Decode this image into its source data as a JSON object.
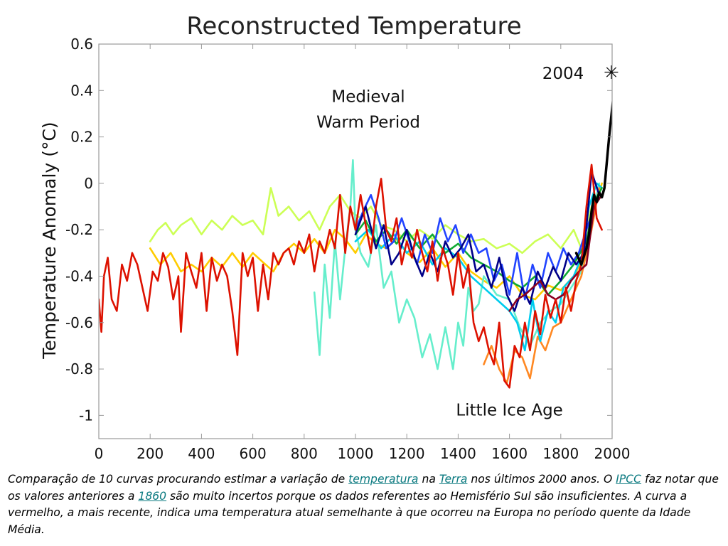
{
  "chart_data": {
    "type": "line",
    "title": "Reconstructed Temperature",
    "xlabel": "",
    "ylabel": "Temperature Anomaly (°C)",
    "xlim": [
      0,
      2000
    ],
    "ylim": [
      -1.1,
      0.6
    ],
    "xticks": [
      0,
      200,
      400,
      600,
      800,
      1000,
      1200,
      1400,
      1600,
      1800,
      2000
    ],
    "yticks": [
      {
        "value": 0.6,
        "label": "0.6"
      },
      {
        "value": 0.4,
        "label": "0.4"
      },
      {
        "value": 0.2,
        "label": "0.2"
      },
      {
        "value": 0,
        "label": "0"
      },
      {
        "value": -0.2,
        "label": "-0.2"
      },
      {
        "value": -0.4,
        "label": "-0.4"
      },
      {
        "value": -0.6,
        "label": "-0.6"
      },
      {
        "value": -0.8,
        "label": "-0.8"
      },
      {
        "value": -1,
        "label": "-1"
      }
    ],
    "grid": false,
    "annotations": [
      {
        "text": "Medieval",
        "x": 1050,
        "y": 0.35
      },
      {
        "text": "Warm Period",
        "x": 1050,
        "y": 0.24
      },
      {
        "text": "Little Ice Age",
        "x": 1600,
        "y": -1.0
      },
      {
        "text": "2004",
        "x": 1890,
        "y": 0.45
      },
      {
        "text": "✳",
        "x": 1997,
        "y": 0.45
      }
    ],
    "series": [
      {
        "color": "#ccff55",
        "x": [
          200,
          230,
          260,
          290,
          320,
          360,
          400,
          440,
          480,
          520,
          560,
          600,
          640,
          670,
          700,
          740,
          780,
          820,
          860,
          900,
          940,
          980,
          1020,
          1060,
          1100,
          1150,
          1200,
          1250,
          1300,
          1350,
          1400,
          1450,
          1500,
          1550,
          1600,
          1650,
          1700,
          1750,
          1800,
          1850,
          1880,
          1900,
          1920,
          1950
        ],
        "y": [
          -0.25,
          -0.2,
          -0.17,
          -0.22,
          -0.18,
          -0.15,
          -0.22,
          -0.16,
          -0.2,
          -0.14,
          -0.18,
          -0.16,
          -0.22,
          -0.02,
          -0.14,
          -0.1,
          -0.16,
          -0.12,
          -0.2,
          -0.1,
          -0.05,
          -0.12,
          -0.15,
          -0.1,
          -0.18,
          -0.2,
          -0.25,
          -0.2,
          -0.24,
          -0.18,
          -0.22,
          -0.25,
          -0.24,
          -0.28,
          -0.26,
          -0.3,
          -0.25,
          -0.22,
          -0.28,
          -0.2,
          -0.28,
          -0.2,
          -0.1,
          -0.05
        ]
      },
      {
        "color": "#ffcc00",
        "x": [
          200,
          240,
          280,
          320,
          360,
          400,
          440,
          480,
          520,
          560,
          600,
          640,
          680,
          720,
          760,
          800,
          840,
          880,
          920,
          960,
          1000,
          1040,
          1080,
          1120,
          1160,
          1200,
          1250,
          1300,
          1350,
          1400,
          1450,
          1500,
          1550,
          1600,
          1650,
          1700,
          1750,
          1800,
          1850,
          1900,
          1930,
          1960
        ],
        "y": [
          -0.28,
          -0.35,
          -0.3,
          -0.38,
          -0.35,
          -0.38,
          -0.32,
          -0.36,
          -0.3,
          -0.36,
          -0.3,
          -0.34,
          -0.38,
          -0.3,
          -0.26,
          -0.3,
          -0.24,
          -0.3,
          -0.2,
          -0.24,
          -0.3,
          -0.22,
          -0.26,
          -0.28,
          -0.24,
          -0.3,
          -0.34,
          -0.28,
          -0.36,
          -0.3,
          -0.38,
          -0.42,
          -0.45,
          -0.4,
          -0.48,
          -0.5,
          -0.44,
          -0.46,
          -0.4,
          -0.3,
          -0.12,
          0.0
        ]
      },
      {
        "color": "#66eecc",
        "x": [
          840,
          860,
          880,
          900,
          920,
          940,
          960,
          980,
          990,
          1000,
          1020,
          1050,
          1080,
          1110,
          1140,
          1170,
          1200,
          1230,
          1260,
          1290,
          1320,
          1350,
          1380,
          1400,
          1420,
          1440,
          1460,
          1480,
          1500,
          1550,
          1600,
          1640,
          1680,
          1720,
          1760,
          1800,
          1840,
          1880,
          1920,
          1950
        ],
        "y": [
          -0.47,
          -0.74,
          -0.35,
          -0.58,
          -0.25,
          -0.5,
          -0.28,
          -0.1,
          0.1,
          -0.2,
          -0.3,
          -0.36,
          -0.18,
          -0.45,
          -0.38,
          -0.6,
          -0.5,
          -0.58,
          -0.75,
          -0.65,
          -0.8,
          -0.62,
          -0.8,
          -0.6,
          -0.7,
          -0.45,
          -0.55,
          -0.52,
          -0.4,
          -0.48,
          -0.5,
          -0.62,
          -0.7,
          -0.6,
          -0.55,
          -0.52,
          -0.45,
          -0.38,
          -0.15,
          0.0
        ]
      },
      {
        "color": "#ff8822",
        "x": [
          1500,
          1530,
          1560,
          1590,
          1620,
          1650,
          1680,
          1710,
          1740,
          1770,
          1800,
          1840,
          1880,
          1920,
          1950
        ],
        "y": [
          -0.78,
          -0.7,
          -0.8,
          -0.86,
          -0.72,
          -0.75,
          -0.84,
          -0.66,
          -0.72,
          -0.62,
          -0.6,
          -0.5,
          -0.4,
          -0.2,
          -0.02
        ]
      },
      {
        "color": "#00ccee",
        "x": [
          1000,
          1050,
          1100,
          1150,
          1200,
          1250,
          1300,
          1350,
          1400,
          1450,
          1500,
          1550,
          1600,
          1630,
          1660,
          1690,
          1720,
          1750,
          1780,
          1810,
          1850,
          1880,
          1910,
          1940,
          1960
        ],
        "y": [
          -0.25,
          -0.2,
          -0.28,
          -0.22,
          -0.3,
          -0.25,
          -0.35,
          -0.28,
          -0.32,
          -0.4,
          -0.45,
          -0.5,
          -0.55,
          -0.6,
          -0.72,
          -0.5,
          -0.68,
          -0.55,
          -0.6,
          -0.45,
          -0.4,
          -0.32,
          -0.1,
          0.0,
          -0.02
        ]
      },
      {
        "color": "#11aa33",
        "x": [
          1000,
          1040,
          1080,
          1120,
          1160,
          1200,
          1250,
          1300,
          1350,
          1400,
          1450,
          1500,
          1550,
          1600,
          1650,
          1700,
          1750,
          1800,
          1850,
          1900,
          1930,
          1960
        ],
        "y": [
          -0.22,
          -0.16,
          -0.25,
          -0.2,
          -0.26,
          -0.2,
          -0.28,
          -0.22,
          -0.3,
          -0.26,
          -0.32,
          -0.35,
          -0.38,
          -0.42,
          -0.45,
          -0.4,
          -0.48,
          -0.42,
          -0.35,
          -0.25,
          -0.08,
          -0.02
        ]
      },
      {
        "color": "#2244ff",
        "x": [
          1000,
          1030,
          1060,
          1090,
          1120,
          1150,
          1180,
          1210,
          1240,
          1270,
          1300,
          1330,
          1360,
          1390,
          1420,
          1450,
          1480,
          1510,
          1540,
          1570,
          1600,
          1630,
          1660,
          1690,
          1720,
          1750,
          1780,
          1810,
          1840,
          1870,
          1900,
          1930
        ],
        "y": [
          -0.2,
          -0.12,
          -0.05,
          -0.15,
          -0.28,
          -0.25,
          -0.15,
          -0.25,
          -0.35,
          -0.22,
          -0.3,
          -0.15,
          -0.25,
          -0.18,
          -0.3,
          -0.22,
          -0.3,
          -0.28,
          -0.42,
          -0.35,
          -0.48,
          -0.3,
          -0.5,
          -0.35,
          -0.45,
          -0.3,
          -0.38,
          -0.28,
          -0.35,
          -0.3,
          -0.2,
          -0.1
        ]
      },
      {
        "color": "#000088",
        "x": [
          1000,
          1040,
          1080,
          1110,
          1140,
          1170,
          1200,
          1230,
          1260,
          1290,
          1320,
          1350,
          1380,
          1410,
          1440,
          1470,
          1500,
          1530,
          1560,
          1590,
          1620,
          1650,
          1680,
          1710,
          1740,
          1770,
          1800,
          1830,
          1860,
          1890,
          1920,
          1950
        ],
        "y": [
          -0.22,
          -0.1,
          -0.28,
          -0.18,
          -0.35,
          -0.3,
          -0.2,
          -0.32,
          -0.4,
          -0.3,
          -0.38,
          -0.25,
          -0.32,
          -0.28,
          -0.22,
          -0.38,
          -0.35,
          -0.45,
          -0.32,
          -0.48,
          -0.55,
          -0.45,
          -0.52,
          -0.38,
          -0.45,
          -0.36,
          -0.42,
          -0.3,
          -0.35,
          -0.3,
          0.05,
          -0.05
        ]
      },
      {
        "color": "#880022",
        "x": [
          1600,
          1630,
          1660,
          1690,
          1720,
          1750,
          1780,
          1810,
          1840,
          1870,
          1900,
          1930,
          1960
        ],
        "y": [
          -0.55,
          -0.5,
          -0.48,
          -0.45,
          -0.42,
          -0.48,
          -0.5,
          -0.48,
          -0.42,
          -0.38,
          -0.35,
          -0.1,
          -0.05
        ]
      },
      {
        "color": "#dd1100",
        "x": [
          0,
          10,
          20,
          35,
          50,
          70,
          90,
          110,
          130,
          150,
          170,
          190,
          210,
          230,
          250,
          270,
          290,
          310,
          320,
          340,
          360,
          380,
          400,
          420,
          440,
          460,
          480,
          500,
          520,
          540,
          560,
          580,
          600,
          620,
          640,
          660,
          680,
          700,
          720,
          740,
          760,
          780,
          800,
          820,
          840,
          860,
          880,
          900,
          920,
          940,
          960,
          980,
          1000,
          1020,
          1040,
          1060,
          1080,
          1100,
          1120,
          1140,
          1160,
          1180,
          1200,
          1220,
          1240,
          1260,
          1280,
          1300,
          1320,
          1340,
          1360,
          1380,
          1400,
          1420,
          1440,
          1460,
          1480,
          1500,
          1520,
          1540,
          1560,
          1580,
          1600,
          1620,
          1640,
          1660,
          1680,
          1700,
          1720,
          1740,
          1760,
          1780,
          1800,
          1820,
          1840,
          1860,
          1880,
          1900,
          1920,
          1940,
          1960
        ],
        "y": [
          -0.5,
          -0.64,
          -0.4,
          -0.32,
          -0.5,
          -0.55,
          -0.35,
          -0.42,
          -0.3,
          -0.35,
          -0.45,
          -0.55,
          -0.38,
          -0.42,
          -0.3,
          -0.36,
          -0.5,
          -0.4,
          -0.64,
          -0.3,
          -0.38,
          -0.45,
          -0.3,
          -0.55,
          -0.32,
          -0.42,
          -0.35,
          -0.4,
          -0.55,
          -0.74,
          -0.3,
          -0.4,
          -0.32,
          -0.55,
          -0.35,
          -0.5,
          -0.3,
          -0.35,
          -0.3,
          -0.28,
          -0.35,
          -0.25,
          -0.3,
          -0.22,
          -0.38,
          -0.25,
          -0.3,
          -0.2,
          -0.28,
          -0.05,
          -0.3,
          -0.1,
          -0.2,
          -0.05,
          -0.18,
          -0.3,
          -0.1,
          0.02,
          -0.2,
          -0.25,
          -0.15,
          -0.35,
          -0.25,
          -0.32,
          -0.2,
          -0.3,
          -0.38,
          -0.25,
          -0.42,
          -0.28,
          -0.35,
          -0.48,
          -0.3,
          -0.45,
          -0.35,
          -0.6,
          -0.68,
          -0.62,
          -0.72,
          -0.78,
          -0.6,
          -0.85,
          -0.88,
          -0.7,
          -0.75,
          -0.6,
          -0.72,
          -0.55,
          -0.65,
          -0.48,
          -0.58,
          -0.5,
          -0.6,
          -0.45,
          -0.55,
          -0.42,
          -0.35,
          -0.1,
          0.08,
          -0.15,
          -0.2
        ]
      },
      {
        "color": "#000000",
        "width": 3.5,
        "x": [
          1860,
          1880,
          1900,
          1910,
          1920,
          1930,
          1940,
          1950,
          1960,
          1970,
          1980,
          1990,
          2004
        ],
        "y": [
          -0.3,
          -0.35,
          -0.28,
          -0.22,
          -0.12,
          -0.05,
          -0.08,
          -0.04,
          -0.06,
          -0.02,
          0.1,
          0.22,
          0.36
        ]
      }
    ]
  },
  "caption": {
    "t1": "Comparação de 10 curvas procurando estimar a variação de ",
    "link1": "temperatura",
    "t2": " na ",
    "link2": "Terra",
    "t3": " nos últimos 2000 anos. O ",
    "link3": "IPCC",
    "t4": " faz notar que os valores anteriores a ",
    "link4": "1860",
    "t5": " são muito incertos porque os dados referentes ao Hemisfério Sul são insuficientes. A curva a vermelho, a mais recente, indica uma temperatura atual semelhante à que ocorreu na Europa no período quente da Idade Média."
  }
}
